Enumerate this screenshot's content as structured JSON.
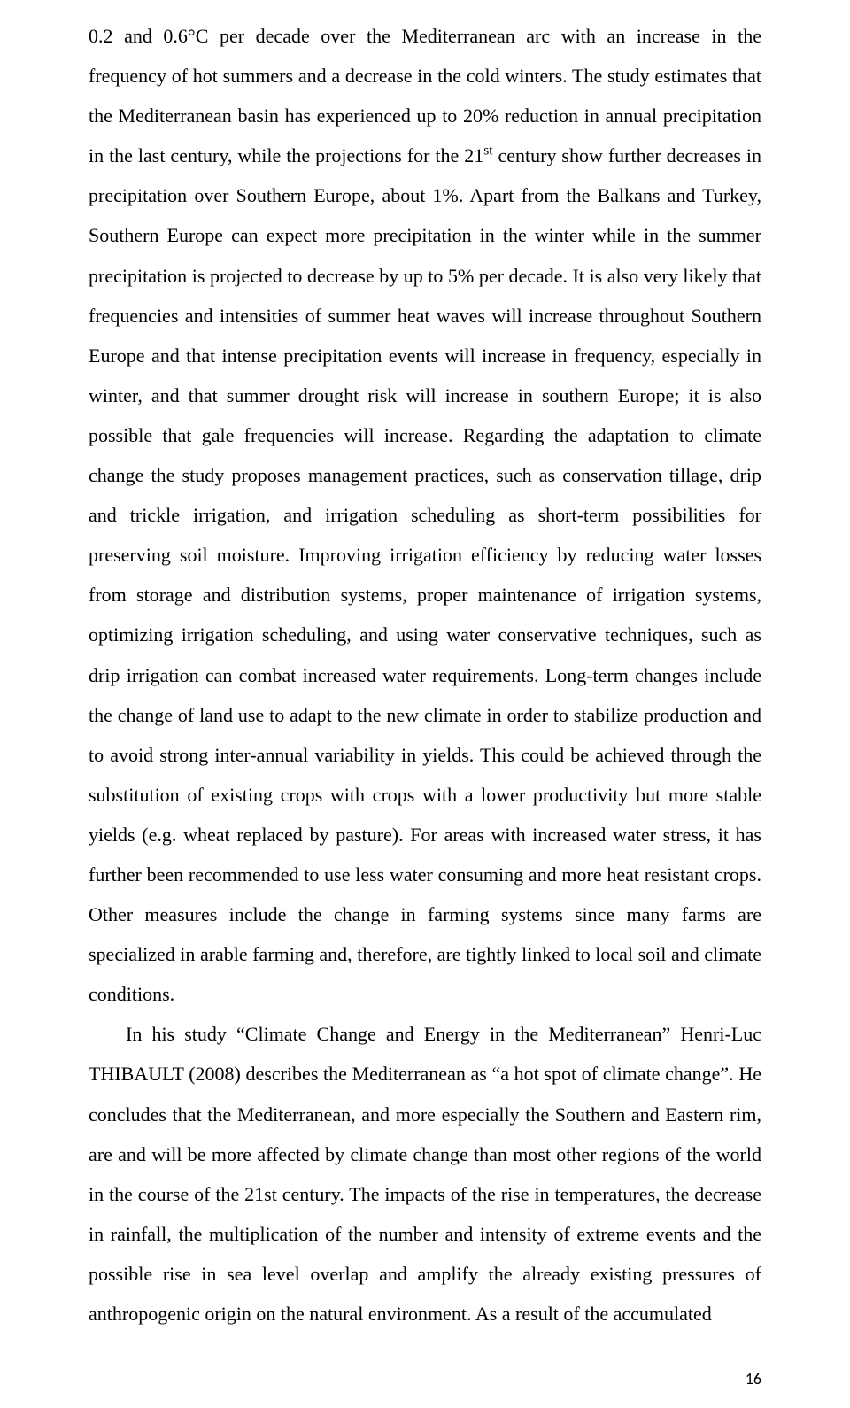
{
  "page": {
    "background": "#ffffff",
    "text_color": "#000000",
    "font_family": "Times New Roman, serif",
    "font_size_pt": 12,
    "line_spacing": 2.05,
    "alignment": "justify",
    "paragraphs": [
      {
        "indent": false,
        "pre_sup": "0.2 and 0.6°C per decade over the Mediterranean arc with an increase in the frequency of hot summers and a decrease in the cold winters. The study estimates that the Mediterranean basin has experienced up to 20% reduction in annual precipitation in the last century, while the projections for the 21",
        "sup": "st",
        "post_sup": " century show further decreases in precipitation over Southern Europe, about 1%. Apart from the Balkans and Turkey, Southern Europe can expect more precipitation in the winter while in the summer precipitation is projected to decrease by up to 5% per decade. It is also very likely that frequencies and intensities of summer heat waves will increase throughout Southern Europe and that intense precipitation events will increase in frequency, especially in winter, and that summer drought risk will increase in southern Europe; it is also possible that gale frequencies will increase. Regarding the adaptation to climate change the study proposes management practices, such as conservation tillage, drip and trickle irrigation, and irrigation scheduling as short-term possibilities for preserving soil moisture. Improving irrigation efficiency by reducing water losses from storage and distribution systems, proper maintenance of irrigation systems, optimizing irrigation scheduling, and using water conservative techniques, such as drip irrigation can combat increased water requirements. Long-term changes include the change of land use to adapt to the new climate in order to stabilize production and to avoid strong inter-annual variability in yields. This could be achieved through the substitution of existing crops with crops with a lower productivity but more stable yields (e.g. wheat replaced by pasture). For areas with increased water stress, it has further been recommended to use less water consuming and more heat resistant crops. Other measures include the change in farming systems since many farms are specialized in arable farming and, therefore, are tightly linked to local soil and climate conditions."
      },
      {
        "indent": true,
        "pre_sup": "In his study “Climate Change and Energy in the Mediterranean” Henri-Luc THIBAULT (2008) describes the Mediterranean as “a hot spot of climate change”. He concludes that the Mediterranean, and more especially the Southern and Eastern rim, are and will be more affected by climate change than most other regions of the world in the course of the 21st century. The impacts of the rise in temperatures, the decrease in rainfall, the multiplication of the number and intensity of extreme events and the possible rise in sea level overlap and amplify the already existing pressures of anthropogenic origin on the natural environment. As a result of the accumulated",
        "sup": "",
        "post_sup": ""
      }
    ],
    "page_number": "16"
  }
}
